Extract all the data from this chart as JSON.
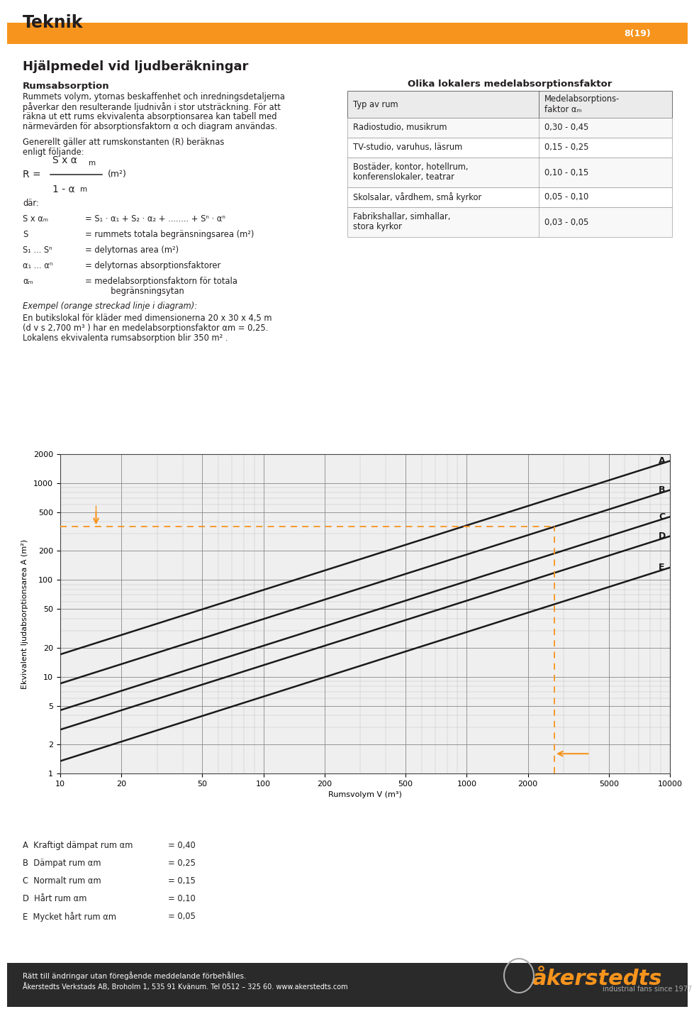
{
  "title_teknik": "Teknik",
  "page_number": "8(19)",
  "orange_color": "#F7941D",
  "bg_color": "#FFFFFF",
  "text_color": "#231F20",
  "dark_bg_color": "#2B2B2B",
  "section_title": "Hjälpmedel vid ljudberäkningar",
  "subsection_title": "Rumsabsorption",
  "body_text": "Rummets volym, ytornas beskaffenhet och inredningsdetaljerna\npåverkar den resulterande ljudnivån i stor utsträckning. För att\nräkna ut ett rums ekvivalenta absorptionsarea kan tabell med\nnärmevärden för absorptionsfaktorn α och diagram användas.",
  "formula_intro": "Generellt gäller att rumskonstanten (R) beräknas\nenligt följande:",
  "formula_dar": "där:",
  "table_title": "Olika lokalers medelabsorptionsfaktor",
  "table_col1": "Typ av rum",
  "table_col2": "Medelabsorptions-\nfaktor αm",
  "table_rows": [
    [
      "Radiostudio, musikrum",
      "0,30 - 0,45"
    ],
    [
      "TV-studio, varuhus, läsrum",
      "0,15 - 0,25"
    ],
    [
      "Bostäder, kontor, hotellrum,\nkonferenslokaler, teatrar",
      "0,10 - 0,15"
    ],
    [
      "Skolsalar, vårdhem, små kyrkor",
      "0,05 - 0,10"
    ],
    [
      "Fabrikshallar, simhallar,\nstora kyrkor",
      "0,03 - 0,05"
    ]
  ],
  "example_line1": "Exempel (orange streckad linje i diagram):",
  "example_line2": "En butikslokal för kläder med dimensionerna 20 x 30 x 4,5 m",
  "example_line3": "(d v s 2,700 m³ ) har en medelabsorptionsfaktor αm = 0,25.",
  "example_line4": "Lokalens ekvivalenta rumsabsorption blir 350 m² .",
  "chart_ylabel": "Ekvivalent ljudabsorptionsarea A (m²)",
  "chart_xlabel": "Rumsvolym V (m³)",
  "line_alphas": [
    0.4,
    0.25,
    0.15,
    0.1,
    0.05
  ],
  "line_labels": [
    "A",
    "B",
    "C",
    "D",
    "E"
  ],
  "legend_A": "A  Kraftigt dämpat rum αm",
  "legend_B": "B  Dämpat rum αm",
  "legend_C": "C  Normalt rum αm",
  "legend_D": "D  Hårt rum αm",
  "legend_E": "E  Mycket hårt rum αm",
  "legend_vals": [
    "= 0,40",
    "= 0,25",
    "= 0,15",
    "= 0,10",
    "= 0,05"
  ],
  "footer_line1": "Rätt till ändringar utan föregående meddelande förbehålles.",
  "footer_line2": "Åkerstedts Verkstads AB, Broholm 1, 535 91 Kvänum. Tel 0512 – 325 60. www.akerstedts.com",
  "footer_logo_text": "åkerstedts",
  "footer_tagline": "industrial fans since 1977"
}
